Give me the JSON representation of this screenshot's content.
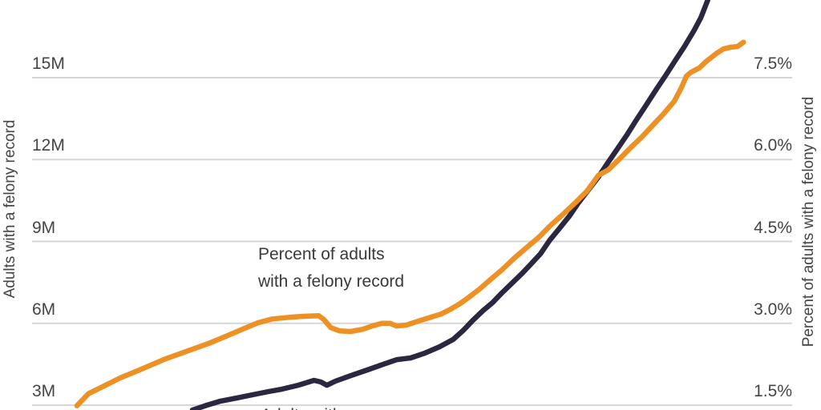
{
  "colors": {
    "accent_orange": "#ee9125",
    "accent_navy": "#2b2740",
    "grid": "#d6d6d6",
    "text": "#454545"
  },
  "chart_data": {
    "type": "line",
    "title": "",
    "grid": true,
    "x_axis": {
      "labels_visible": false,
      "range": [
        0,
        1
      ],
      "x_unit": "normalized-position"
    },
    "left_axis": {
      "label": "Adults with a felony record",
      "unit": "millions",
      "range_top_to_bottom": [
        15,
        3
      ],
      "ticks": [
        {
          "value": 15,
          "label": "15M"
        },
        {
          "value": 12,
          "label": "12M"
        },
        {
          "value": 9,
          "label": "9M"
        },
        {
          "value": 6,
          "label": "6M"
        },
        {
          "value": 3,
          "label": "3M"
        }
      ]
    },
    "right_axis": {
      "label": "Percent of adults with a felony record",
      "unit": "percent",
      "range_top_to_bottom": [
        7.5,
        1.5
      ],
      "ticks": [
        {
          "value": 7.5,
          "label": "7.5%"
        },
        {
          "value": 6.0,
          "label": "6.0%"
        },
        {
          "value": 4.5,
          "label": "4.5%"
        },
        {
          "value": 3.0,
          "label": "3.0%"
        },
        {
          "value": 1.5,
          "label": "1.5%"
        }
      ]
    },
    "series": [
      {
        "name": "Adults with a felony record",
        "axis": "left",
        "color": "#2b2740",
        "points": [
          [
            0.211,
            2.82
          ],
          [
            0.23,
            3.0
          ],
          [
            0.248,
            3.15
          ],
          [
            0.269,
            3.26
          ],
          [
            0.29,
            3.38
          ],
          [
            0.311,
            3.5
          ],
          [
            0.329,
            3.59
          ],
          [
            0.35,
            3.73
          ],
          [
            0.371,
            3.91
          ],
          [
            0.38,
            3.85
          ],
          [
            0.388,
            3.73
          ],
          [
            0.399,
            3.88
          ],
          [
            0.42,
            4.09
          ],
          [
            0.441,
            4.29
          ],
          [
            0.462,
            4.5
          ],
          [
            0.48,
            4.67
          ],
          [
            0.498,
            4.73
          ],
          [
            0.517,
            4.91
          ],
          [
            0.536,
            5.14
          ],
          [
            0.554,
            5.41
          ],
          [
            0.568,
            5.76
          ],
          [
            0.58,
            6.11
          ],
          [
            0.593,
            6.46
          ],
          [
            0.606,
            6.76
          ],
          [
            0.618,
            7.11
          ],
          [
            0.631,
            7.46
          ],
          [
            0.644,
            7.81
          ],
          [
            0.656,
            8.16
          ],
          [
            0.669,
            8.55
          ],
          [
            0.681,
            9.04
          ],
          [
            0.694,
            9.48
          ],
          [
            0.707,
            9.93
          ],
          [
            0.719,
            10.42
          ],
          [
            0.732,
            10.89
          ],
          [
            0.745,
            11.36
          ],
          [
            0.757,
            11.86
          ],
          [
            0.77,
            12.39
          ],
          [
            0.783,
            12.92
          ],
          [
            0.795,
            13.45
          ],
          [
            0.808,
            14.0
          ],
          [
            0.821,
            14.56
          ],
          [
            0.833,
            15.06
          ],
          [
            0.846,
            15.62
          ],
          [
            0.859,
            16.17
          ],
          [
            0.871,
            16.73
          ],
          [
            0.88,
            17.2
          ],
          [
            0.889,
            17.85
          ]
        ]
      },
      {
        "name": "Percent of adults with a felony record",
        "axis": "right",
        "color": "#ee9125",
        "points": [
          [
            0.059,
            1.49
          ],
          [
            0.074,
            1.71
          ],
          [
            0.093,
            1.84
          ],
          [
            0.116,
            2.0
          ],
          [
            0.142,
            2.15
          ],
          [
            0.174,
            2.34
          ],
          [
            0.206,
            2.5
          ],
          [
            0.234,
            2.64
          ],
          [
            0.258,
            2.78
          ],
          [
            0.28,
            2.91
          ],
          [
            0.297,
            3.01
          ],
          [
            0.316,
            3.08
          ],
          [
            0.338,
            3.11
          ],
          [
            0.359,
            3.13
          ],
          [
            0.377,
            3.14
          ],
          [
            0.384,
            3.07
          ],
          [
            0.393,
            2.92
          ],
          [
            0.405,
            2.86
          ],
          [
            0.419,
            2.85
          ],
          [
            0.435,
            2.89
          ],
          [
            0.447,
            2.95
          ],
          [
            0.46,
            3.0
          ],
          [
            0.471,
            3.0
          ],
          [
            0.48,
            2.95
          ],
          [
            0.493,
            2.97
          ],
          [
            0.506,
            3.03
          ],
          [
            0.522,
            3.1
          ],
          [
            0.538,
            3.17
          ],
          [
            0.551,
            3.26
          ],
          [
            0.563,
            3.36
          ],
          [
            0.575,
            3.48
          ],
          [
            0.589,
            3.63
          ],
          [
            0.603,
            3.8
          ],
          [
            0.619,
            3.99
          ],
          [
            0.635,
            4.2
          ],
          [
            0.651,
            4.39
          ],
          [
            0.667,
            4.58
          ],
          [
            0.682,
            4.79
          ],
          [
            0.698,
            4.99
          ],
          [
            0.714,
            5.2
          ],
          [
            0.73,
            5.42
          ],
          [
            0.745,
            5.71
          ],
          [
            0.758,
            5.81
          ],
          [
            0.772,
            6.0
          ],
          [
            0.787,
            6.21
          ],
          [
            0.802,
            6.41
          ],
          [
            0.816,
            6.62
          ],
          [
            0.831,
            6.84
          ],
          [
            0.845,
            7.07
          ],
          [
            0.854,
            7.31
          ],
          [
            0.861,
            7.53
          ],
          [
            0.867,
            7.6
          ],
          [
            0.878,
            7.68
          ],
          [
            0.888,
            7.81
          ],
          [
            0.9,
            7.94
          ],
          [
            0.91,
            8.03
          ],
          [
            0.92,
            8.06
          ],
          [
            0.928,
            8.07
          ],
          [
            0.936,
            8.15
          ]
        ]
      }
    ],
    "annotations": {
      "percent_line_label": {
        "line1": "Percent of adults",
        "line2": "with a felony record"
      },
      "count_line_label": {
        "line1": "Adults with"
      }
    },
    "legend_position": "inline-annotations"
  }
}
